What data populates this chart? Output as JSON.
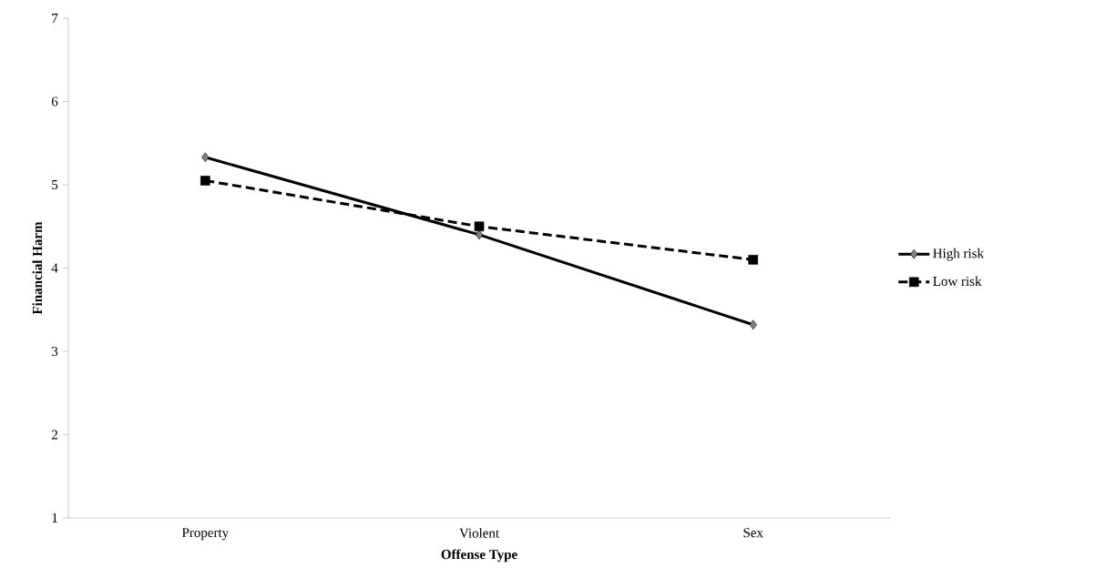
{
  "chart_data": {
    "type": "line",
    "xlabel": "Offense Type",
    "ylabel": "Financial Harm",
    "categories": [
      "Property",
      "Violent",
      "Sex"
    ],
    "series": [
      {
        "name": "High risk",
        "color": "#000000",
        "values": [
          5.33,
          4.4,
          3.32
        ],
        "marker": "diamond",
        "line_style": "solid"
      },
      {
        "name": "Low risk",
        "color": "#000000",
        "values": [
          5.05,
          4.5,
          4.1
        ],
        "marker": "square",
        "line_style": "dashed"
      }
    ],
    "ylim": [
      1,
      7
    ],
    "yticks": [
      1,
      2,
      3,
      4,
      5,
      6,
      7
    ],
    "grid": false,
    "legend": "right"
  }
}
